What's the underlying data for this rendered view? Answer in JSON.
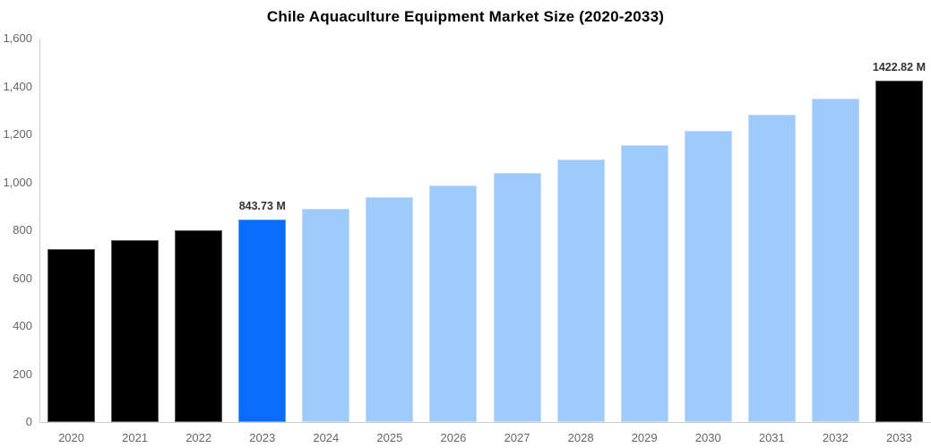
{
  "chart_data": {
    "type": "bar",
    "title": "Chile Aquaculture Equipment Market Size (2020-2033)",
    "unit": "M",
    "categories": [
      "2020",
      "2021",
      "2022",
      "2023",
      "2024",
      "2025",
      "2026",
      "2027",
      "2028",
      "2029",
      "2030",
      "2031",
      "2032",
      "2033"
    ],
    "values": [
      721.3,
      760.0,
      800.8,
      843.73,
      889.0,
      936.7,
      986.9,
      1039.9,
      1095.7,
      1154.4,
      1216.4,
      1281.6,
      1350.4,
      1422.82
    ],
    "bar_colors": [
      "#000000",
      "#000000",
      "#000000",
      "#0a6cfa",
      "#9ecbfa",
      "#9ecbfa",
      "#9ecbfa",
      "#9ecbfa",
      "#9ecbfa",
      "#9ecbfa",
      "#9ecbfa",
      "#9ecbfa",
      "#9ecbfa",
      "#000000"
    ],
    "point_labels": [
      {
        "category": "2023",
        "text": "843.73 M"
      },
      {
        "category": "2033",
        "text": "1422.82 M"
      }
    ],
    "y_ticks": [
      {
        "value": 0,
        "label": "0"
      },
      {
        "value": 200,
        "label": "200"
      },
      {
        "value": 400,
        "label": "400"
      },
      {
        "value": 600,
        "label": "600"
      },
      {
        "value": 800,
        "label": "800"
      },
      {
        "value": 1000,
        "label": "1,000"
      },
      {
        "value": 1200,
        "label": "1,200"
      },
      {
        "value": 1400,
        "label": "1,400"
      },
      {
        "value": 1600,
        "label": "1,600"
      }
    ],
    "ylim": [
      0,
      1600
    ],
    "xlabel": "",
    "ylabel": "",
    "grid": false,
    "legend": false,
    "colors": {
      "historical_bar": "#000000",
      "highlight_bar": "#0a6cfa",
      "forecast_bar": "#9ecbfa",
      "final_bar": "#000000",
      "axis_line": "#cccccc",
      "tick_label": "#666666",
      "value_label": "#333333",
      "title": "#000000",
      "background": "#ffffff"
    }
  }
}
